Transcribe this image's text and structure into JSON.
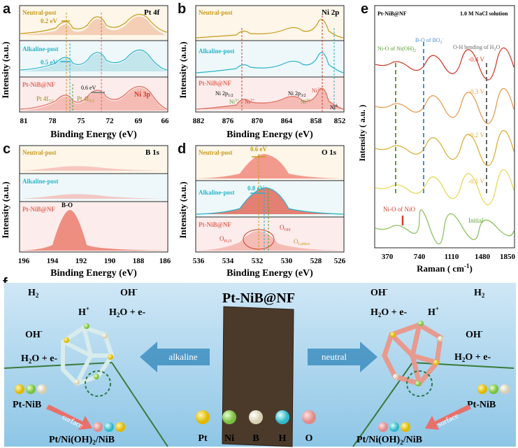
{
  "panels": {
    "a": {
      "letter": "a",
      "title": "Pt 4f",
      "xlabel": "Binding Energy (eV)",
      "ylabel": "Intensity (a.u.)",
      "xticks": [
        "81",
        "78",
        "75",
        "72",
        "69",
        "66"
      ],
      "labels": {
        "neutral": "Neutral-post",
        "alkaline": "Alkaline-post",
        "pristine": "Pt-NiB@NF",
        "shift1": "0.2 eV",
        "shift2": "0.5 eV",
        "shift3": "0.6 eV",
        "pt72": "Pt 4f",
        "pt72sub": "7/2",
        "pt52": "Pt 4f",
        "pt52sub": "5/2",
        "ni3p": "Ni 3p"
      }
    },
    "b": {
      "letter": "b",
      "title": "Ni 2p",
      "xlabel": "Binding Energy (eV)",
      "ylabel": "Intensity (a.u.)",
      "xticks": [
        "882",
        "876",
        "870",
        "864",
        "858",
        "852"
      ],
      "labels": {
        "neutral": "Neutral-post",
        "alkaline": "Alkaline-post",
        "pristine": "Pt-NiB@NF",
        "ni12": "Ni 2p",
        "ni12sub": "1/2",
        "ni32": "Ni 2p",
        "ni32sub": "3/2",
        "ni3a": "Ni",
        "ni3asup": "3+",
        "ni2a": "Ni",
        "ni2asup": "2+",
        "ni3b": "Ni",
        "ni3bsup": "3+",
        "ni2b": "Ni",
        "ni2bsup": "2+",
        "nid": "Ni",
        "nidsup": "δ"
      }
    },
    "c": {
      "letter": "c",
      "title": "B 1s",
      "xlabel": "Binding Energy (eV)",
      "ylabel": "Intensity (a.u.)",
      "xticks": [
        "196",
        "194",
        "192",
        "190",
        "188",
        "186"
      ],
      "labels": {
        "neutral": "Neutral-post",
        "alkaline": "Alkaline-post",
        "pristine": "Pt-NiB@NF",
        "bo": "B-O"
      }
    },
    "d": {
      "letter": "d",
      "title": "O 1s",
      "xlabel": "Binding Energy (eV)",
      "ylabel": "Intensity (a.u.)",
      "xticks": [
        "536",
        "534",
        "532",
        "530",
        "528",
        "526"
      ],
      "labels": {
        "neutral": "Neutral-post",
        "alkaline": "Alkaline-post",
        "pristine": "Pt-NiB@NF",
        "shift1": "0.6 eV",
        "shift2": "0.8 eV",
        "oh2o": "O",
        "oh2osub": "H₂O",
        "ooh": "O",
        "oohsub": "OH",
        "olat": "O",
        "olatsub": "Lattice"
      }
    },
    "e": {
      "letter": "e",
      "xlabel": "Raman ( cm",
      "xlabelsup": "-1",
      "xlabelend": ")",
      "ylabel": "Intensity ( a.u. )",
      "xticks": [
        "370",
        "740",
        "1110",
        "1480",
        "1850"
      ],
      "labels": {
        "sample": "Pt-NiB@NF",
        "solution": "1.0 M NaCl solution",
        "nioh": "Ni-O of Ni(OH)",
        "niohsub": "2",
        "bo2": "B-O of BO",
        "bo2sub": "2",
        "bo2sup": "-",
        "oh": "O-H bending of H",
        "ohsub": "2",
        "ohend": "O",
        "v4": "-0.4 V",
        "v3": "-0.3 V",
        "v2": "-0.2 V",
        "v1": "-0.1 V",
        "nio": "Ni-O of NiO",
        "initial": "Initial"
      }
    },
    "f": {
      "letter": "f",
      "title": "Pt-NiB@NF",
      "alkaline": "alkaline",
      "neutral": "neutral",
      "h2": "H",
      "h2sub": "2",
      "ohm": "OH",
      "ohmsup": "-",
      "hplus": "H",
      "hplussup": "+",
      "h2oe": "H",
      "h2oesub": "2",
      "h2oeend": "O + e-",
      "ptnib": "Pt-NiB",
      "surface": "surface",
      "product": "Pt/Ni(OH)",
      "productsub": "2",
      "productend": "/NiB",
      "legend": [
        "Pt",
        "Ni",
        "B",
        "H",
        "O"
      ]
    }
  },
  "colors": {
    "neutral": "#c89a1a",
    "alkaline": "#27b4c8",
    "pristine": "#e06a5a",
    "red": "#d23c2a",
    "green": "#5aa032",
    "blue": "#4a90d0"
  }
}
